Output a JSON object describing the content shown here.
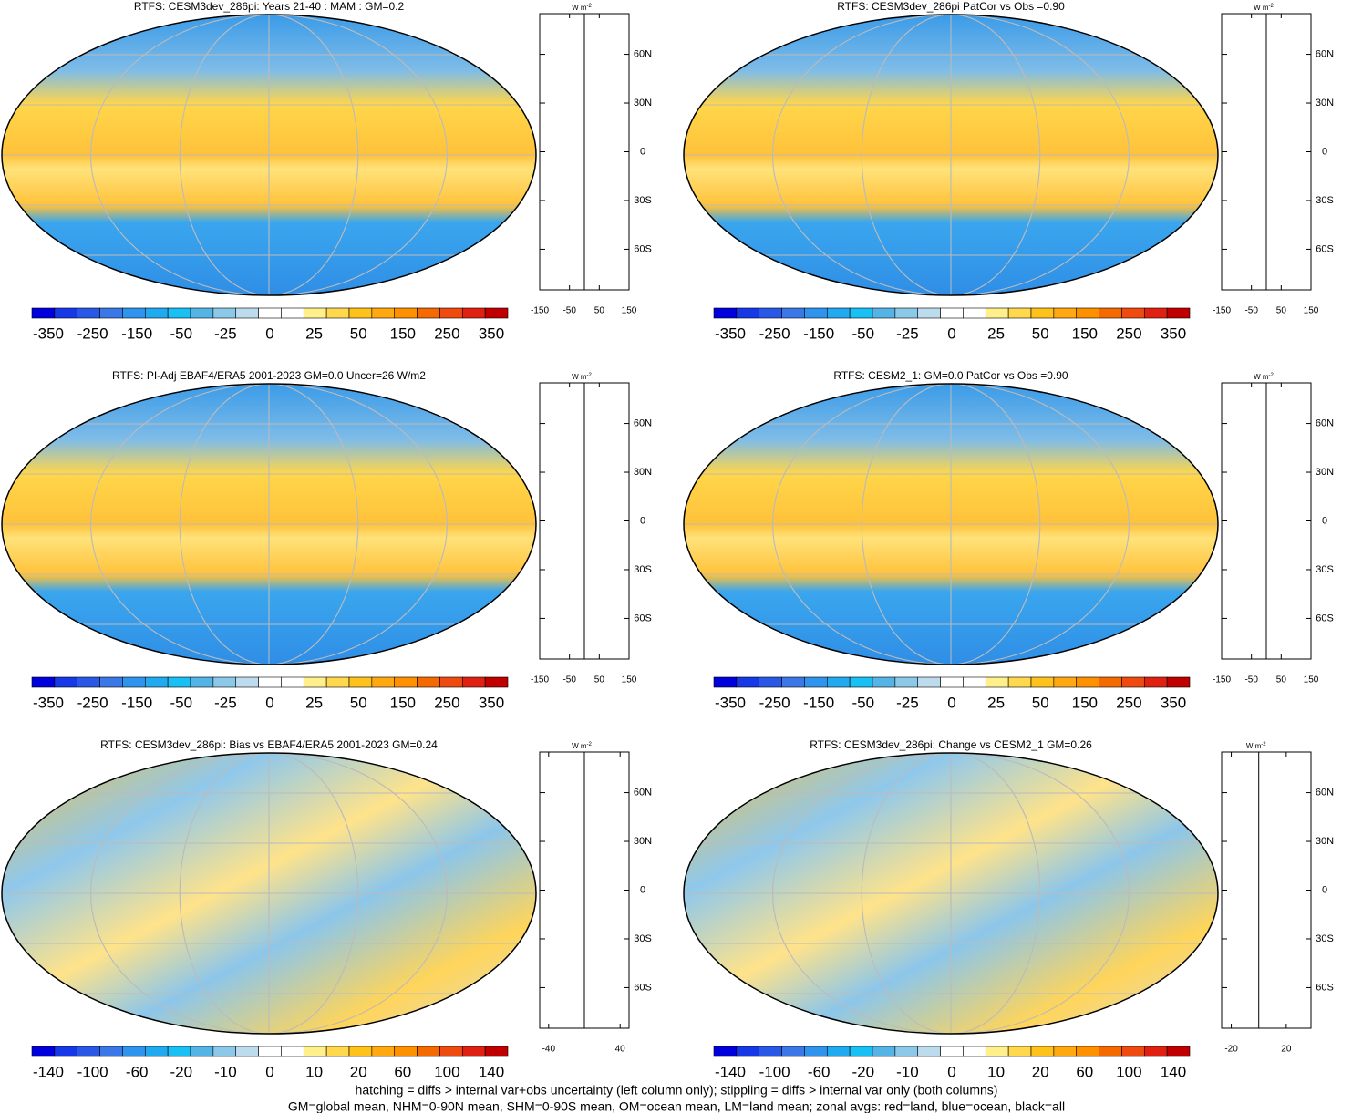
{
  "panels": [
    {
      "title": "RTFS: CESM3dev_286pi: Years 21-40 : MAM : GM=0.2",
      "colorbar": [
        -350,
        -250,
        -150,
        -50,
        -25,
        0,
        25,
        50,
        150,
        250,
        350
      ],
      "profile": {
        "unit": "W m",
        "unit_sup": "-2",
        "xlim": [
          -150,
          150
        ],
        "xticks": [
          -150,
          -50,
          50,
          150
        ],
        "ylim": [
          -85,
          85
        ],
        "yticks": [
          {
            "value": 60,
            "label": "60N"
          },
          {
            "value": 30,
            "label": "30N"
          },
          0,
          {
            "value": -30,
            "label": "30S"
          },
          {
            "value": -60,
            "label": "60S"
          }
        ]
      }
    },
    {
      "title": "RTFS: CESM3dev_286pi PatCor vs Obs =0.90",
      "colorbar": [
        -350,
        -250,
        -150,
        -50,
        -25,
        0,
        25,
        50,
        150,
        250,
        350
      ],
      "profile": {
        "unit": "W m",
        "unit_sup": "-2",
        "xlim": [
          -150,
          150
        ],
        "xticks": [
          -150,
          -50,
          50,
          150
        ],
        "ylim": [
          -85,
          85
        ],
        "yticks": [
          {
            "value": 60,
            "label": "60N"
          },
          {
            "value": 30,
            "label": "30N"
          },
          0,
          {
            "value": -30,
            "label": "30S"
          },
          {
            "value": -60,
            "label": "60S"
          }
        ]
      }
    },
    {
      "title": "RTFS: PI-Adj EBAF4/ERA5 2001-2023 GM=0.0 Uncer=26 W/m2",
      "colorbar": [
        -350,
        -250,
        -150,
        -50,
        -25,
        0,
        25,
        50,
        150,
        250,
        350
      ],
      "profile": {
        "unit": "W m",
        "unit_sup": "-2",
        "xlim": [
          -150,
          150
        ],
        "xticks": [
          -150,
          -50,
          50,
          150
        ],
        "ylim": [
          -85,
          85
        ],
        "yticks": [
          {
            "value": 60,
            "label": "60N"
          },
          {
            "value": 30,
            "label": "30N"
          },
          0,
          {
            "value": -30,
            "label": "30S"
          },
          {
            "value": -60,
            "label": "60S"
          }
        ]
      }
    },
    {
      "title": "RTFS: CESM2_1: GM=0.0 PatCor vs Obs =0.90",
      "colorbar": [
        -350,
        -250,
        -150,
        -50,
        -25,
        0,
        25,
        50,
        150,
        250,
        350
      ],
      "profile": {
        "unit": "W m",
        "unit_sup": "-2",
        "xlim": [
          -150,
          150
        ],
        "xticks": [
          -150,
          -50,
          50,
          150
        ],
        "ylim": [
          -85,
          85
        ],
        "yticks": [
          {
            "value": 60,
            "label": "60N"
          },
          {
            "value": 30,
            "label": "30N"
          },
          0,
          {
            "value": -30,
            "label": "30S"
          },
          {
            "value": -60,
            "label": "60S"
          }
        ]
      }
    },
    {
      "title": "RTFS: CESM3dev_286pi: Bias vs EBAF4/ERA5 2001-2023 GM=0.24",
      "colorbar": [
        -140,
        -100,
        -60,
        -20,
        -10,
        0,
        10,
        20,
        60,
        100,
        140
      ],
      "profile": {
        "unit": "W m",
        "unit_sup": "-2",
        "xlim": [
          -50,
          50
        ],
        "xticks": [
          -40,
          40
        ],
        "ylim": [
          -85,
          85
        ],
        "yticks": [
          {
            "value": 60,
            "label": "60N"
          },
          {
            "value": 30,
            "label": "30N"
          },
          0,
          {
            "value": -30,
            "label": "30S"
          },
          {
            "value": -60,
            "label": "60S"
          }
        ]
      }
    },
    {
      "title": "RTFS: CESM3dev_286pi: Change vs CESM2_1 GM=0.26",
      "colorbar": [
        -140,
        -100,
        -60,
        -20,
        -10,
        0,
        10,
        20,
        60,
        100,
        140
      ],
      "profile": {
        "unit": "W m",
        "unit_sup": "-2",
        "xlim": [
          -27,
          38
        ],
        "xticks": [
          -20,
          20
        ],
        "ylim": [
          -85,
          85
        ],
        "yticks": [
          {
            "value": 60,
            "label": "60N"
          },
          {
            "value": 30,
            "label": "30N"
          },
          0,
          {
            "value": -30,
            "label": "30S"
          },
          {
            "value": -60,
            "label": "60S"
          }
        ]
      }
    }
  ],
  "footer": [
    "hatching = diffs > internal var+obs uncertainty (left column only); stippling = diffs > internal var only (both columns)",
    "GM=global mean, NHM=0-90N mean, SHM=0-90S mean, OM=ocean mean, LM=land mean; zonal avgs: red=land, blue=ocean, black=all"
  ]
}
